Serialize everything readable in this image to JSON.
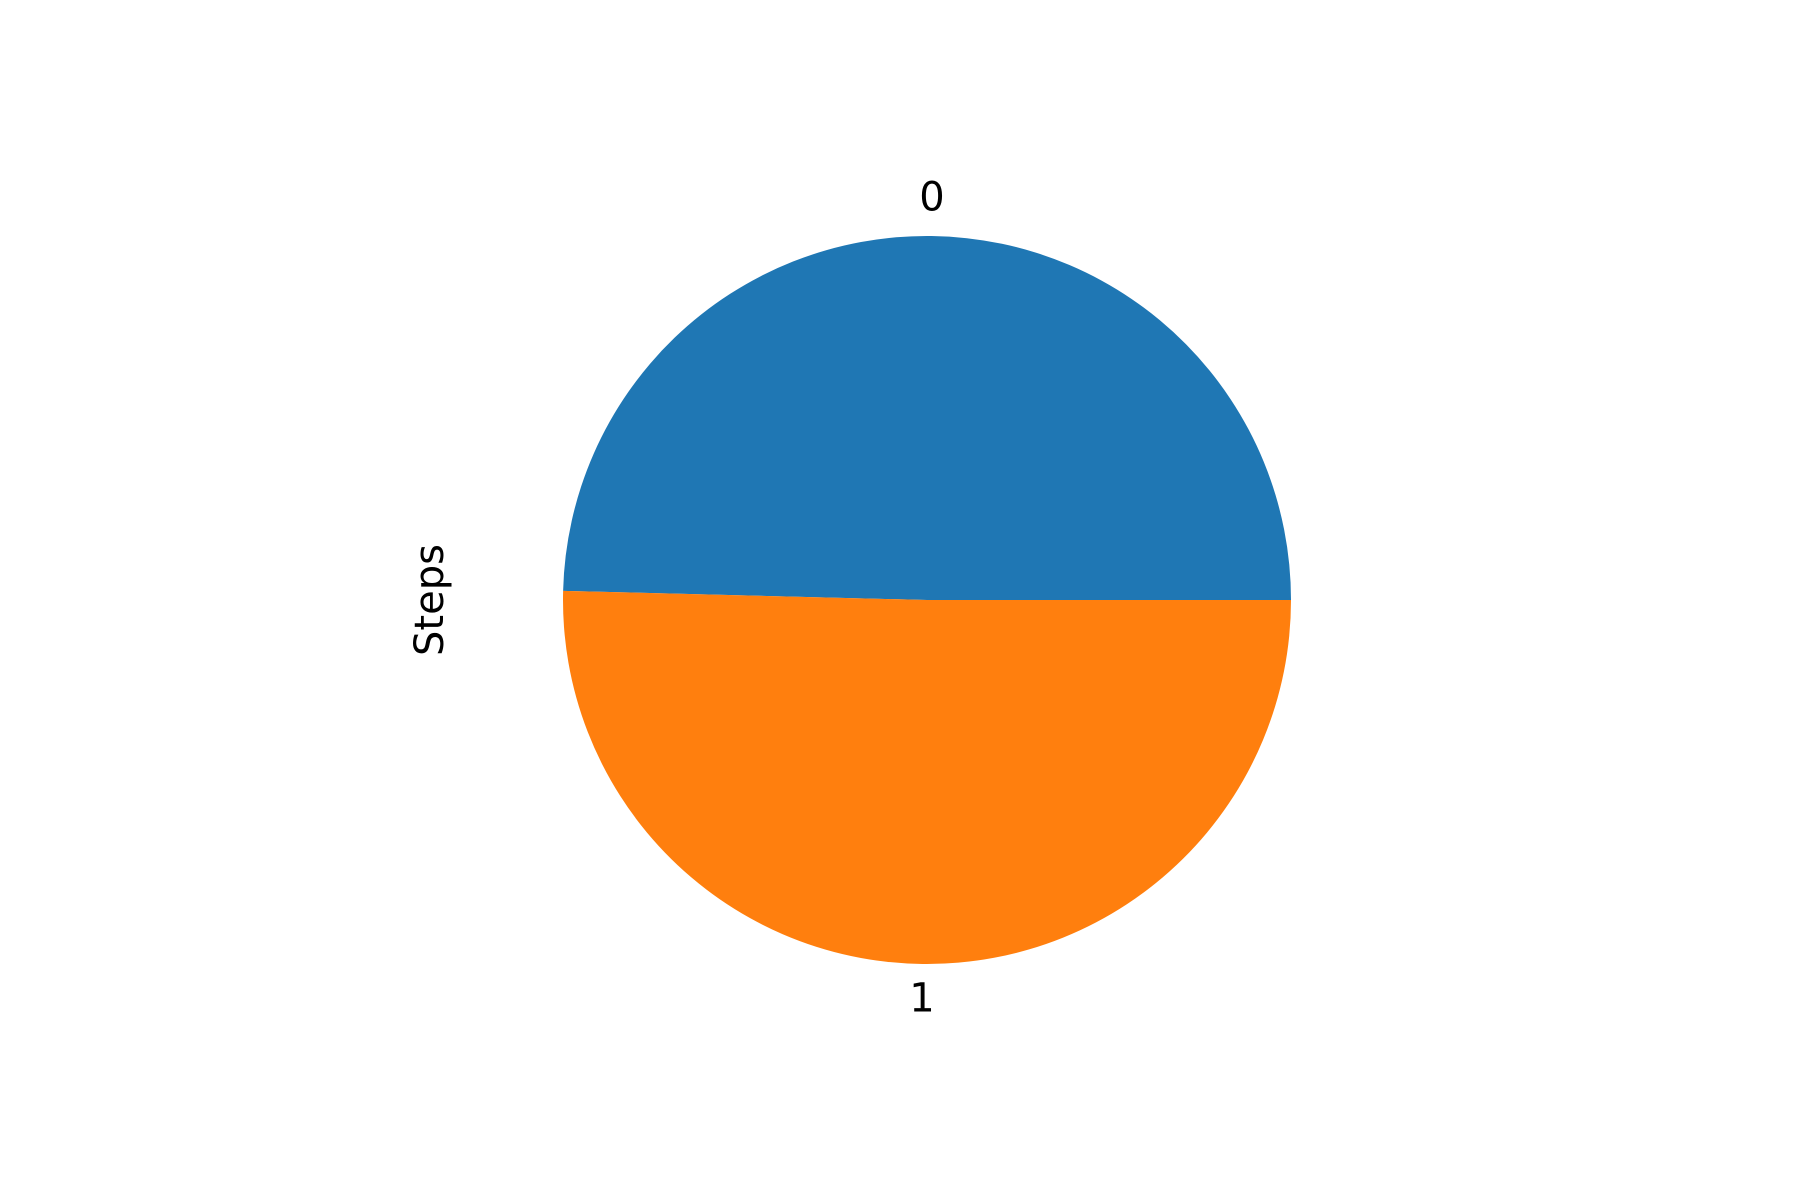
{
  "chart_data": {
    "type": "pie",
    "ylabel": "Steps",
    "categories": [
      "0",
      "1"
    ],
    "values": [
      49.6,
      50.4
    ],
    "colors": [
      "#1f77b4",
      "#ff7f0e"
    ],
    "start_angle_deg": 0,
    "direction": "counterclockwise",
    "legend": "none"
  }
}
